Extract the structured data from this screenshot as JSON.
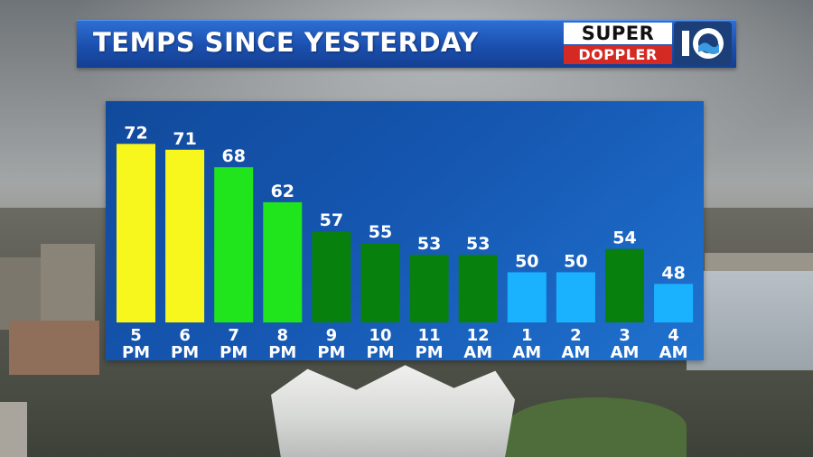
{
  "header": {
    "title": "TEMPS SINCE YESTERDAY"
  },
  "logo": {
    "line1": "SUPER",
    "line2": "DOPPLER",
    "number": "10"
  },
  "colors": {
    "title_bar": "#1b4fae",
    "panel": "#1556b0",
    "yellow": "#f7f71e",
    "bright_green": "#20e51c",
    "dark_green": "#08800e",
    "light_blue": "#1ab2ff"
  },
  "chart_data": {
    "type": "bar",
    "title": "TEMPS SINCE YESTERDAY",
    "categories": [
      {
        "hour": "5",
        "period": "PM"
      },
      {
        "hour": "6",
        "period": "PM"
      },
      {
        "hour": "7",
        "period": "PM"
      },
      {
        "hour": "8",
        "period": "PM"
      },
      {
        "hour": "9",
        "period": "PM"
      },
      {
        "hour": "10",
        "period": "PM"
      },
      {
        "hour": "11",
        "period": "PM"
      },
      {
        "hour": "12",
        "period": "AM"
      },
      {
        "hour": "1",
        "period": "AM"
      },
      {
        "hour": "2",
        "period": "AM"
      },
      {
        "hour": "3",
        "period": "AM"
      },
      {
        "hour": "4",
        "period": "AM"
      }
    ],
    "values": [
      72,
      71,
      68,
      62,
      57,
      55,
      53,
      53,
      50,
      50,
      54,
      48
    ],
    "bar_colors": [
      "#f7f71e",
      "#f7f71e",
      "#20e51c",
      "#20e51c",
      "#08800e",
      "#08800e",
      "#08800e",
      "#08800e",
      "#1ab2ff",
      "#1ab2ff",
      "#08800e",
      "#1ab2ff"
    ],
    "data_labels": true,
    "grid": false,
    "legend": "none"
  }
}
